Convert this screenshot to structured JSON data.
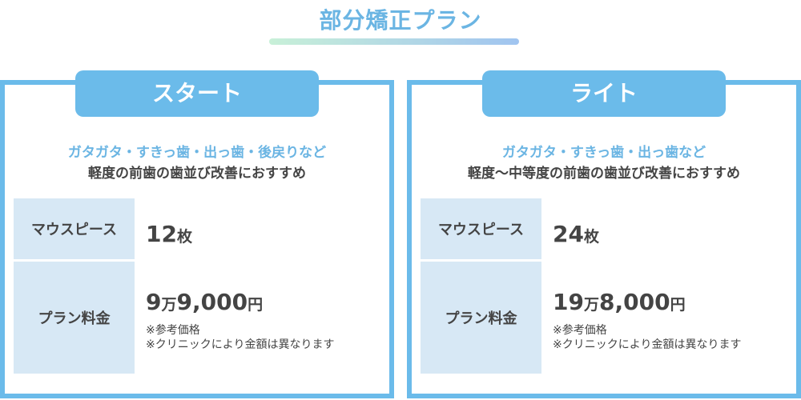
{
  "title": "部分矯正プラン",
  "plans": [
    {
      "name": "スタート",
      "features": "ガタガタ・すきっ歯・出っ歯・後戻りなど",
      "recommend": "軽度の前歯の歯並び改善におすすめ",
      "row1_label": "マウスピース",
      "count": "12",
      "count_unit": "枚",
      "row2_label": "プラン料金",
      "price_man": "9",
      "man_unit": "万",
      "price_rest": "9,000",
      "yen_unit": "円",
      "note1": "※参考価格",
      "note2": "※クリニックにより金額は異なります"
    },
    {
      "name": "ライト",
      "features": "ガタガタ・すきっ歯・出っ歯など",
      "recommend": "軽度〜中等度の前歯の歯並び改善におすすめ",
      "row1_label": "マウスピース",
      "count": "24",
      "count_unit": "枚",
      "row2_label": "プラン料金",
      "price_man": "19",
      "man_unit": "万",
      "price_rest": "8,000",
      "yen_unit": "円",
      "note1": "※参考価格",
      "note2": "※クリニックにより金額は異なります"
    }
  ],
  "colors": {
    "accent": "#6bbbea",
    "label_bg": "#d7e8f5"
  }
}
